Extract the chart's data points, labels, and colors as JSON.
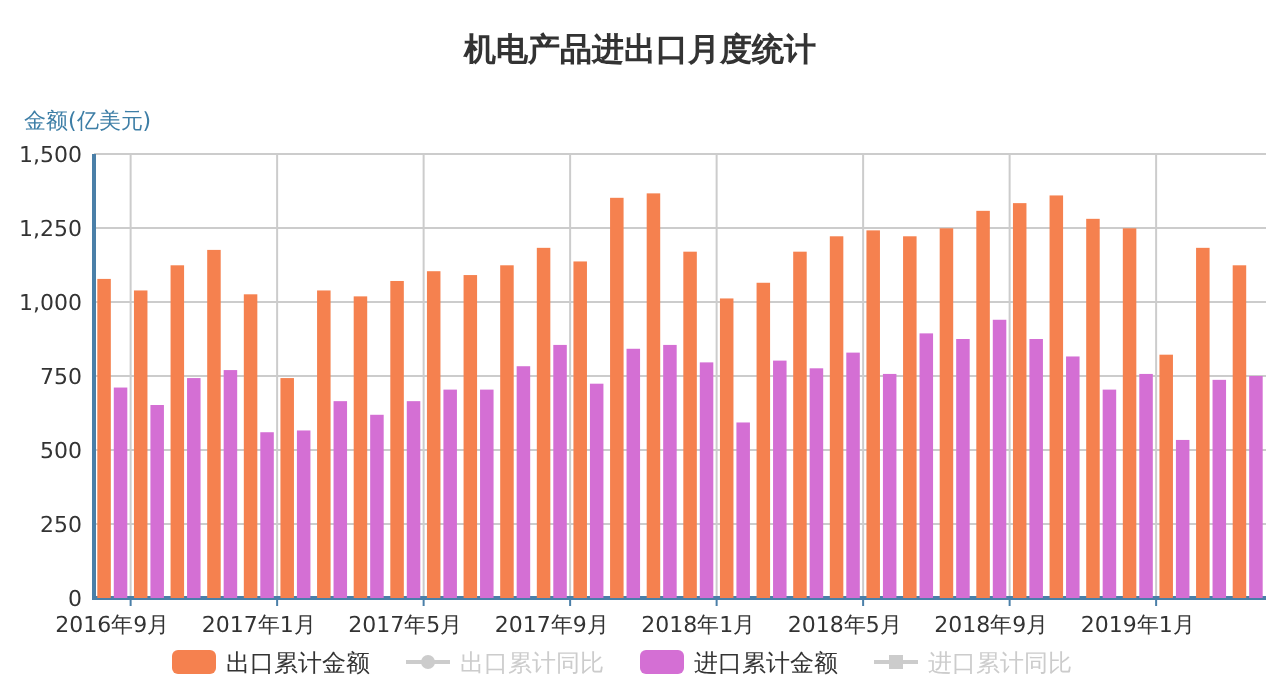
{
  "chart_data": {
    "type": "bar",
    "title": "机电产品进出口月度统计",
    "ylabel": "金额(亿美元)",
    "categories": [
      "2016年9月",
      null,
      null,
      null,
      "2017年1月",
      null,
      null,
      null,
      "2017年5月",
      null,
      null,
      null,
      "2017年9月",
      null,
      null,
      null,
      "2018年1月",
      null,
      null,
      null,
      "2018年5月",
      null,
      null,
      null,
      "2018年9月",
      null,
      null,
      null,
      "2019年1月",
      null,
      null,
      null
    ],
    "series": [
      {
        "name": "出口累计金额",
        "color": "#f5814f",
        "values": [
          1078,
          1039,
          1124,
          1176,
          1026,
          743,
          1039,
          1019,
          1071,
          1104,
          1091,
          1124,
          1183,
          1137,
          1352,
          1367,
          1170,
          1012,
          1065,
          1170,
          1222,
          1242,
          1222,
          1249,
          1308,
          1334,
          1360,
          1281,
          1249,
          822,
          1183,
          1124
        ]
      },
      {
        "name": "出口累计同比",
        "type": "line",
        "color": "#cccccc",
        "marker": "circle",
        "values": [
          null,
          null,
          null,
          null,
          null,
          null,
          null,
          null,
          null,
          null,
          null,
          null,
          null,
          null,
          null,
          null,
          null,
          null,
          null,
          null,
          null,
          null,
          null,
          null,
          null,
          null,
          null,
          null,
          null,
          null,
          null,
          null
        ]
      },
      {
        "name": "进口累计金额",
        "color": "#d46fd4",
        "values": [
          711,
          652,
          743,
          770,
          560,
          566,
          665,
          619,
          665,
          704,
          704,
          783,
          855,
          724,
          842,
          855,
          796,
          593,
          802,
          776,
          829,
          757,
          894,
          875,
          940,
          875,
          816,
          704,
          757,
          534,
          737,
          750
        ]
      },
      {
        "name": "进口累计同比",
        "type": "line",
        "color": "#cccccc",
        "marker": "square",
        "values": [
          null,
          null,
          null,
          null,
          null,
          null,
          null,
          null,
          null,
          null,
          null,
          null,
          null,
          null,
          null,
          null,
          null,
          null,
          null,
          null,
          null,
          null,
          null,
          null,
          null,
          null,
          null,
          null,
          null,
          null,
          null,
          null
        ]
      }
    ],
    "ylim": [
      0,
      1500
    ],
    "yticks": [
      0,
      250,
      500,
      750,
      {
        "value": 1000,
        "label": "1,000"
      },
      {
        "value": 1250,
        "label": "1,250"
      },
      {
        "value": 1500,
        "label": "1,500"
      }
    ],
    "grid": true,
    "legend": "bottom"
  }
}
